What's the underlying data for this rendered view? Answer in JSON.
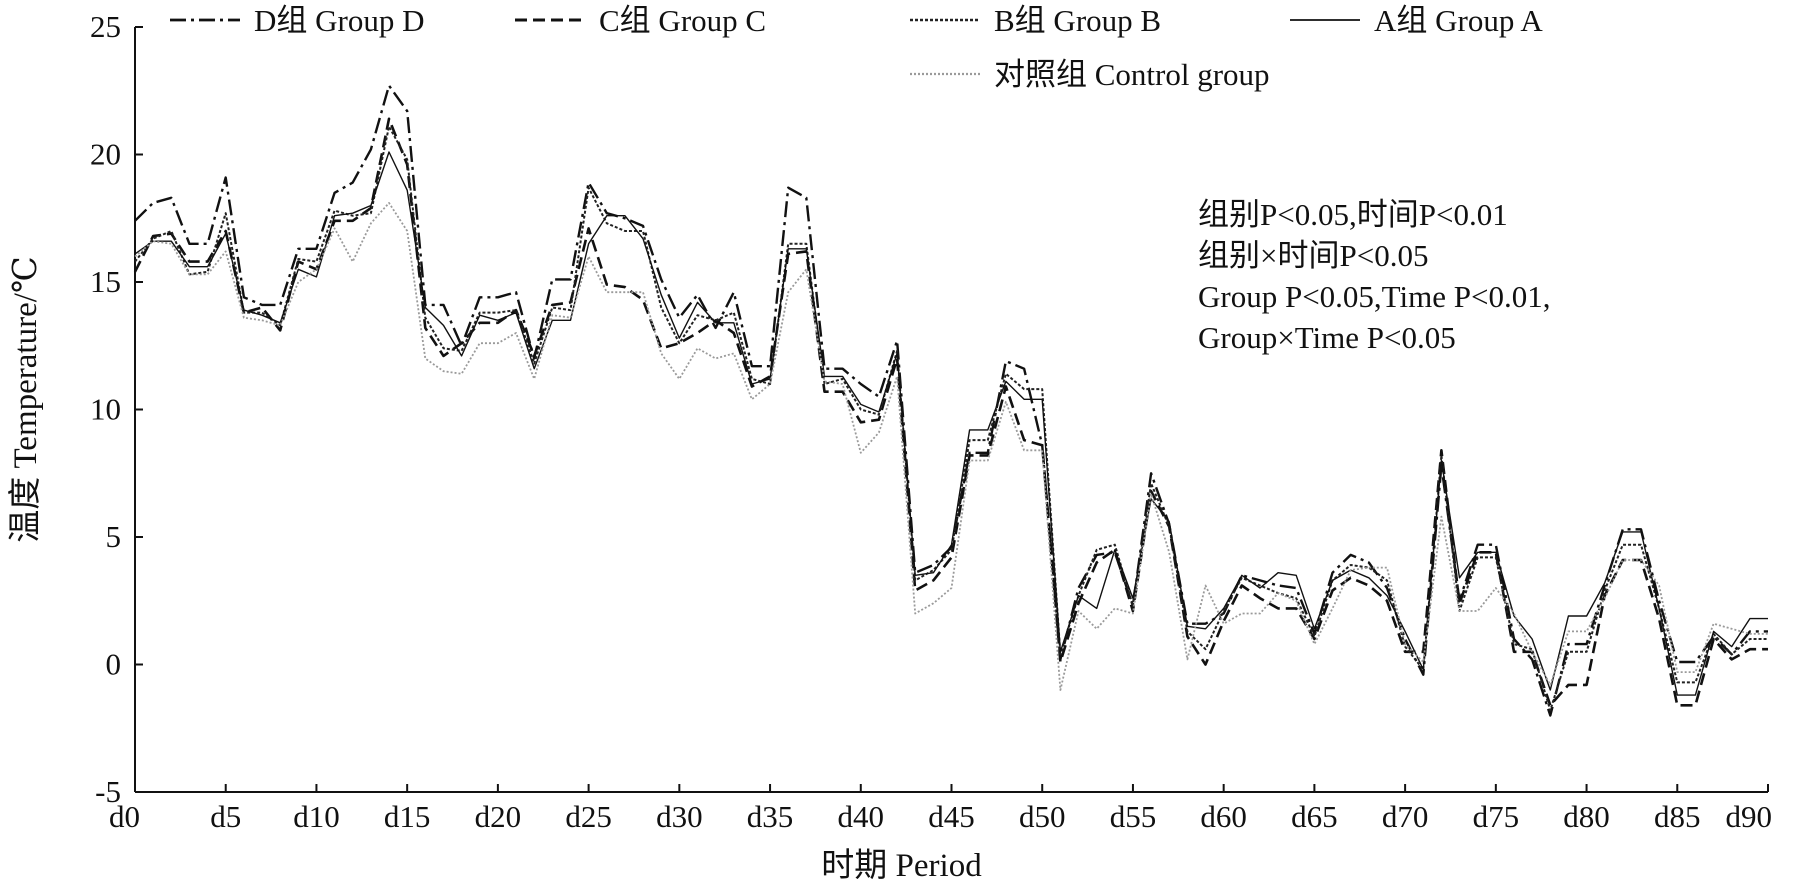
{
  "chart_data": {
    "type": "line",
    "title": "",
    "xlabel": "时期 Period",
    "ylabel": "温度 Temperature/℃",
    "ylim": [
      -5,
      25
    ],
    "yticks": [
      -5,
      0,
      5,
      10,
      15,
      20,
      25
    ],
    "xlim": [
      0,
      90
    ],
    "x_tick_labels": [
      "d0",
      "d5",
      "d10",
      "d15",
      "d20",
      "d25",
      "d30",
      "d35",
      "d40",
      "d45",
      "d50",
      "d55",
      "d60",
      "d65",
      "d70",
      "d75",
      "d80",
      "d85",
      "d90"
    ],
    "x_tick_values": [
      0,
      5,
      10,
      15,
      20,
      25,
      30,
      35,
      40,
      45,
      50,
      55,
      60,
      65,
      70,
      75,
      80,
      85,
      90
    ],
    "legend_position": "top",
    "grid": false,
    "annotations": [
      "组别P<0.05,时间P<0.01",
      "组别×时间P<0.05",
      "Group P<0.05,Time P<0.01,",
      "Group×Time P<0.05"
    ],
    "x": [
      0,
      1,
      2,
      3,
      4,
      5,
      6,
      7,
      8,
      9,
      10,
      11,
      12,
      13,
      14,
      15,
      16,
      17,
      18,
      19,
      20,
      21,
      22,
      23,
      24,
      25,
      26,
      27,
      28,
      29,
      30,
      31,
      32,
      33,
      34,
      35,
      36,
      37,
      38,
      39,
      40,
      41,
      42,
      43,
      44,
      45,
      46,
      47,
      48,
      49,
      50,
      51,
      52,
      53,
      54,
      55,
      56,
      57,
      58,
      59,
      60,
      61,
      62,
      63,
      64,
      65,
      66,
      67,
      68,
      69,
      70,
      71,
      72,
      73,
      74,
      75,
      76,
      77,
      78,
      79,
      80,
      81,
      82,
      83,
      84,
      85,
      86,
      87,
      88,
      89,
      90
    ],
    "series": [
      {
        "name": "D组 Group D",
        "dash": "dashdot",
        "values": [
          17.4,
          18.1,
          18.3,
          16.5,
          16.5,
          19.1,
          14.4,
          14.1,
          14.1,
          16.3,
          16.3,
          18.5,
          18.9,
          20.2,
          22.7,
          21.7,
          14.1,
          14.1,
          12.5,
          14.4,
          14.4,
          14.6,
          12.0,
          15.1,
          15.1,
          18.9,
          17.7,
          17.5,
          17.2,
          15.1,
          13.6,
          14.5,
          13.2,
          14.6,
          11.7,
          11.7,
          18.7,
          18.3,
          11.6,
          11.6,
          11.0,
          10.5,
          12.7,
          3.6,
          3.9,
          4.6,
          8.3,
          8.3,
          11.9,
          11.6,
          8.6,
          0.2,
          3.0,
          4.3,
          4.4,
          2.3,
          7.5,
          5.5,
          1.6,
          1.6,
          2.0,
          3.5,
          3.3,
          3.1,
          3.0,
          1.2,
          3.6,
          4.3,
          4.0,
          3.0,
          1.0,
          -0.4,
          7.8,
          2.5,
          4.7,
          4.7,
          1.0,
          0.2,
          -2.0,
          0.8,
          0.8,
          3.1,
          5.3,
          5.3,
          2.5,
          0.1,
          0.1,
          1.1,
          0.4,
          1.3,
          1.3
        ]
      },
      {
        "name": "C组 Group C",
        "dash": "dashed",
        "values": [
          15.4,
          16.8,
          16.9,
          15.8,
          15.8,
          17.0,
          13.8,
          14.0,
          13.1,
          15.8,
          15.5,
          17.4,
          17.4,
          17.9,
          21.4,
          19.6,
          13.2,
          12.1,
          12.6,
          13.4,
          13.4,
          13.9,
          12.1,
          14.1,
          14.2,
          17.1,
          14.9,
          14.8,
          14.3,
          12.4,
          12.6,
          13.0,
          13.5,
          13.0,
          10.9,
          11.3,
          16.1,
          16.2,
          10.7,
          10.7,
          9.5,
          9.6,
          12.0,
          2.9,
          3.3,
          4.2,
          8.2,
          8.2,
          10.9,
          8.8,
          8.6,
          0.1,
          2.4,
          4.0,
          4.5,
          2.1,
          6.8,
          5.4,
          1.1,
          0.0,
          1.7,
          3.1,
          2.6,
          2.2,
          2.2,
          1.0,
          2.9,
          3.4,
          3.1,
          2.5,
          0.5,
          0.5,
          8.4,
          2.4,
          4.4,
          4.4,
          0.5,
          0.5,
          -1.6,
          -0.8,
          -0.8,
          2.7,
          4.1,
          4.1,
          1.8,
          -1.6,
          -1.6,
          1.0,
          0.2,
          0.6,
          0.6
        ]
      },
      {
        "name": "B组 Group B",
        "dash": "dotted-fine",
        "values": [
          15.8,
          16.7,
          17.0,
          15.3,
          15.4,
          17.7,
          13.8,
          13.8,
          13.3,
          15.9,
          15.8,
          17.8,
          17.6,
          17.7,
          21.1,
          19.8,
          13.6,
          12.4,
          12.3,
          13.8,
          13.8,
          13.9,
          11.8,
          14.0,
          13.9,
          18.7,
          17.3,
          17.0,
          17.0,
          14.0,
          12.6,
          13.7,
          13.5,
          13.8,
          11.2,
          11.0,
          16.5,
          16.5,
          11.0,
          11.2,
          10.0,
          9.8,
          12.3,
          3.3,
          3.7,
          4.5,
          8.8,
          8.8,
          11.4,
          10.8,
          10.8,
          0.4,
          2.7,
          4.5,
          4.7,
          2.3,
          7.1,
          5.4,
          1.3,
          0.6,
          2.1,
          3.4,
          3.1,
          2.8,
          2.6,
          1.1,
          3.3,
          3.9,
          3.8,
          3.3,
          0.7,
          -0.2,
          8.2,
          2.1,
          4.2,
          4.2,
          0.8,
          0.6,
          -1.8,
          0.5,
          0.5,
          2.9,
          4.7,
          4.7,
          2.2,
          -0.7,
          -0.7,
          1.2,
          0.4,
          1.0,
          1.0
        ]
      },
      {
        "name": "A组 Group A",
        "dash": "solid-thin",
        "values": [
          16.1,
          16.6,
          16.6,
          15.6,
          15.6,
          16.9,
          13.9,
          13.7,
          13.4,
          15.5,
          15.2,
          17.6,
          17.7,
          18.0,
          20.1,
          18.6,
          14.0,
          13.3,
          12.1,
          13.7,
          13.5,
          13.8,
          11.6,
          13.5,
          13.5,
          16.5,
          17.6,
          17.6,
          16.7,
          14.5,
          12.8,
          14.2,
          13.4,
          13.4,
          11.0,
          11.2,
          16.3,
          16.3,
          11.3,
          11.3,
          10.2,
          9.9,
          12.2,
          3.5,
          3.6,
          4.7,
          9.2,
          9.2,
          11.1,
          10.4,
          10.4,
          0.5,
          2.7,
          2.2,
          4.5,
          2.6,
          6.5,
          5.6,
          1.5,
          1.4,
          2.2,
          3.5,
          3.0,
          3.6,
          3.5,
          1.4,
          3.3,
          3.7,
          3.4,
          2.7,
          1.3,
          -0.2,
          8.0,
          3.4,
          4.4,
          4.4,
          1.9,
          1.0,
          -1.0,
          1.9,
          1.9,
          3.2,
          5.2,
          5.2,
          2.2,
          -1.2,
          -1.2,
          1.3,
          0.7,
          1.8,
          1.8
        ]
      },
      {
        "name": "对照组 Control group",
        "dash": "dotted-gray",
        "values": [
          16.0,
          16.6,
          16.5,
          15.3,
          15.3,
          16.2,
          13.6,
          13.5,
          13.3,
          15.0,
          15.5,
          17.1,
          15.8,
          17.3,
          18.1,
          17.0,
          12.0,
          11.5,
          11.4,
          12.6,
          12.6,
          13.0,
          11.2,
          13.7,
          13.6,
          16.0,
          14.6,
          14.6,
          14.6,
          12.2,
          11.2,
          12.4,
          12.0,
          12.2,
          10.4,
          11.0,
          14.6,
          15.5,
          11.1,
          11.0,
          8.3,
          9.1,
          11.3,
          2.0,
          2.4,
          3.0,
          8.0,
          8.0,
          10.3,
          8.4,
          8.4,
          -1.0,
          2.1,
          1.4,
          2.2,
          2.0,
          6.7,
          4.4,
          0.2,
          3.1,
          1.6,
          2.0,
          2.0,
          2.8,
          2.5,
          0.8,
          2.2,
          3.7,
          3.8,
          3.8,
          0.8,
          0.1,
          5.8,
          2.1,
          2.1,
          3.0,
          2.0,
          0.5,
          -0.8,
          1.3,
          1.3,
          2.6,
          4.1,
          4.1,
          3.1,
          -0.3,
          -0.3,
          1.6,
          1.4,
          1.2,
          1.2
        ]
      }
    ]
  }
}
